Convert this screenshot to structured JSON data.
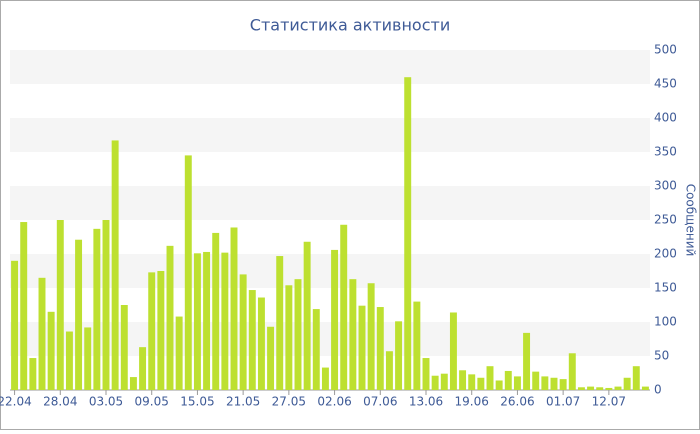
{
  "chart_data": {
    "type": "bar",
    "title": "Статистика активности",
    "y_label": "Сообщений",
    "categories": [
      "22.04",
      null,
      null,
      null,
      null,
      "28.04",
      null,
      null,
      null,
      null,
      "03.05",
      null,
      null,
      null,
      null,
      "09.05",
      null,
      null,
      null,
      null,
      "15.05",
      null,
      null,
      null,
      null,
      "21.05",
      null,
      null,
      null,
      null,
      "27.05",
      null,
      null,
      null,
      null,
      "02.06",
      null,
      null,
      null,
      null,
      "07.06",
      null,
      null,
      null,
      null,
      "13.06",
      null,
      null,
      null,
      null,
      "19.06",
      null,
      null,
      null,
      null,
      "26.06",
      null,
      null,
      null,
      null,
      "01.07",
      null,
      null,
      null,
      null,
      "12.07",
      null,
      null,
      null,
      null
    ],
    "values": [
      190,
      247,
      47,
      165,
      115,
      250,
      86,
      221,
      92,
      237,
      250,
      367,
      125,
      19,
      63,
      173,
      175,
      212,
      108,
      345,
      201,
      203,
      231,
      202,
      239,
      170,
      147,
      136,
      93,
      197,
      154,
      163,
      218,
      119,
      33,
      206,
      243,
      163,
      124,
      157,
      122,
      57,
      101,
      460,
      130,
      47,
      21,
      24,
      114,
      29,
      23,
      18,
      35,
      14,
      28,
      20,
      84,
      27,
      20,
      18,
      16,
      54,
      4,
      5,
      4,
      3,
      5,
      18,
      35,
      5
    ],
    "color": "#bde030",
    "ylim": [
      0,
      500
    ],
    "yticks": [
      0,
      50,
      100,
      150,
      200,
      250,
      300,
      350,
      400,
      450,
      500
    ],
    "y_axis_side": "right",
    "grid": "alternate-bands"
  }
}
